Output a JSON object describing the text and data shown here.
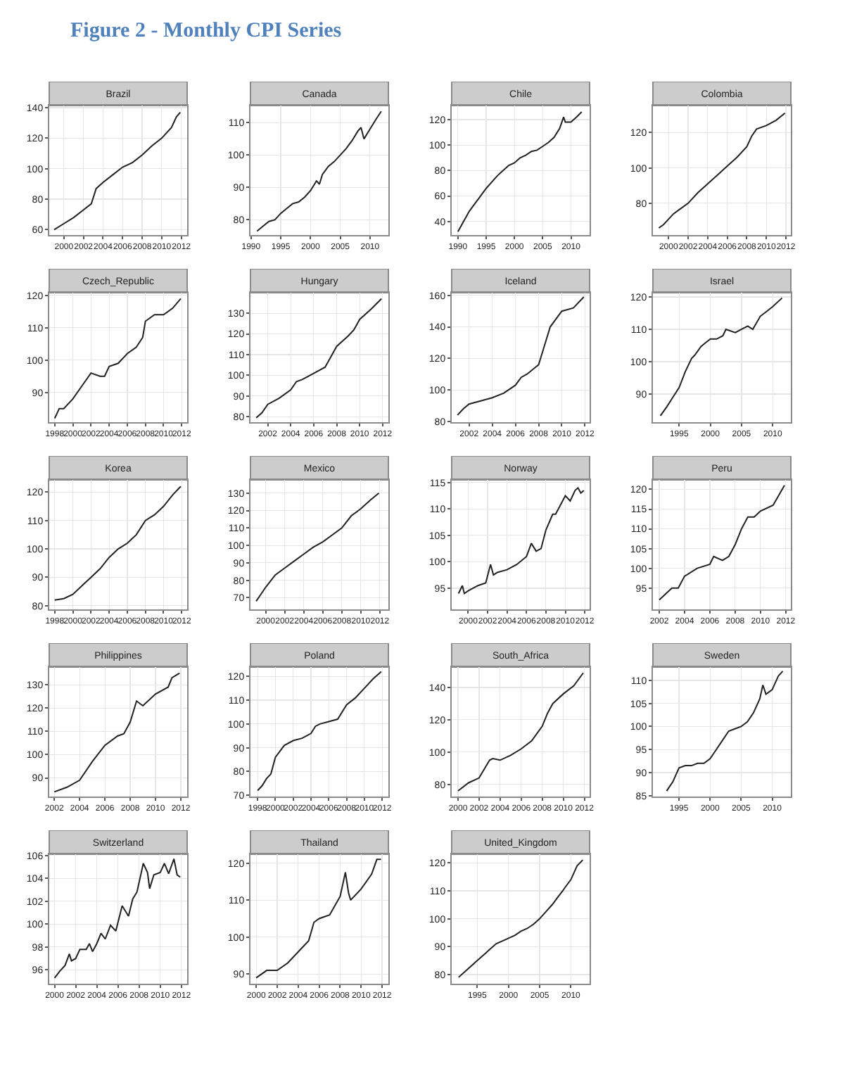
{
  "chart_data": [
    {
      "type": "other",
      "title": "Figure 2 - Monthly CPI Series"
    },
    {
      "type": "line",
      "title": "Brazil",
      "color": "#222222",
      "grid": true,
      "xlim": [
        1998.5,
        2012.6
      ],
      "xticks": [
        2000,
        2002,
        2004,
        2006,
        2008,
        2010,
        2012
      ],
      "ylim": [
        56.5,
        141.4
      ],
      "yticks": [
        60,
        80,
        100,
        120,
        140
      ],
      "x": [
        1999.0,
        2000,
        2001,
        2002,
        2002.8,
        2003.3,
        2004,
        2005,
        2006,
        2007,
        2008,
        2009,
        2010,
        2011,
        2011.5,
        2011.9
      ],
      "values": [
        60,
        64,
        68,
        73,
        77,
        87,
        91,
        96,
        101,
        104,
        109,
        115,
        120,
        127,
        134,
        137
      ]
    },
    {
      "type": "line",
      "title": "Canada",
      "color": "#222222",
      "grid": true,
      "xlim": [
        1989.9,
        2013.1
      ],
      "xticks": [
        1990,
        1995,
        2000,
        2005,
        2010
      ],
      "ylim": [
        75.3,
        115.3
      ],
      "yticks": [
        80,
        90,
        100,
        110
      ],
      "x": [
        1991,
        1992,
        1993,
        1994,
        1995,
        1996,
        1997,
        1998,
        1999,
        2000,
        2001,
        2001.5,
        2002,
        2003,
        2004,
        2005,
        2006,
        2007,
        2008,
        2008.5,
        2009,
        2010,
        2011,
        2011.9
      ],
      "values": [
        76.5,
        78,
        79.5,
        80,
        82,
        83.5,
        85,
        85.5,
        87,
        89,
        92,
        91,
        94,
        96.5,
        98,
        100,
        102,
        104.5,
        107.5,
        108.5,
        105,
        108,
        111,
        113.5
      ]
    },
    {
      "type": "line",
      "title": "Chile",
      "color": "#222222",
      "grid": true,
      "xlim": [
        1988.9,
        2013.3
      ],
      "xticks": [
        1990,
        1995,
        2000,
        2005,
        2010
      ],
      "ylim": [
        29.4,
        131
      ],
      "yticks": [
        40,
        60,
        80,
        100,
        120
      ],
      "x": [
        1990,
        1991,
        1992,
        1993,
        1994,
        1995,
        1996,
        1997,
        1998,
        1999,
        2000,
        2001,
        2002,
        2003,
        2004,
        2005,
        2006,
        2007,
        2008,
        2008.7,
        2009,
        2010,
        2011,
        2011.9
      ],
      "values": [
        32,
        40,
        48,
        54,
        60,
        66,
        71,
        76,
        80,
        84,
        86,
        90,
        92,
        95,
        96,
        99,
        102,
        106,
        113,
        122,
        118,
        118,
        122,
        126
      ]
    },
    {
      "type": "line",
      "title": "Colombia",
      "color": "#222222",
      "grid": true,
      "xlim": [
        1998.4,
        2012.5
      ],
      "xticks": [
        2000,
        2002,
        2004,
        2006,
        2008,
        2010,
        2012
      ],
      "ylim": [
        62,
        135.3
      ],
      "yticks": [
        80,
        100,
        120
      ],
      "x": [
        1999,
        1999.5,
        2000,
        2000.5,
        2001,
        2002,
        2003,
        2004,
        2005,
        2006,
        2007,
        2008,
        2008.5,
        2009,
        2010,
        2011,
        2011.9
      ],
      "values": [
        66,
        68,
        71,
        74,
        76,
        80,
        86,
        91,
        96,
        101,
        106,
        112,
        118,
        122,
        124,
        127,
        131
      ]
    },
    {
      "type": "line",
      "title": "Czech_Republic",
      "color": "#222222",
      "grid": true,
      "xlim": [
        1997.4,
        2012.6
      ],
      "xticks": [
        1998,
        2000,
        2002,
        2004,
        2006,
        2008,
        2010,
        2012
      ],
      "ylim": [
        80.8,
        120.8
      ],
      "yticks": [
        90,
        100,
        110,
        120
      ],
      "x": [
        1998,
        1998.5,
        1999,
        2000,
        2001,
        2002,
        2003,
        2003.5,
        2004,
        2005,
        2006,
        2007,
        2007.7,
        2008,
        2009,
        2010,
        2011,
        2011.9
      ],
      "values": [
        82,
        85,
        85,
        88,
        92,
        96,
        95,
        95,
        98,
        99,
        102,
        104,
        107,
        112,
        114,
        114,
        116,
        119
      ]
    },
    {
      "type": "line",
      "title": "Hungary",
      "color": "#222222",
      "grid": true,
      "xlim": [
        2000.5,
        2012.5
      ],
      "xticks": [
        2002,
        2004,
        2006,
        2008,
        2010,
        2012
      ],
      "ylim": [
        77.4,
        139.9
      ],
      "yticks": [
        80,
        90,
        100,
        110,
        120,
        130
      ],
      "x": [
        2001,
        2001.5,
        2002,
        2003,
        2004,
        2004.5,
        2005,
        2006,
        2007,
        2008,
        2009,
        2009.5,
        2010,
        2011,
        2011.9
      ],
      "values": [
        79.5,
        82,
        86,
        89,
        93,
        97,
        98,
        101,
        104,
        114,
        119,
        122,
        127,
        132,
        137
      ]
    },
    {
      "type": "line",
      "title": "Iceland",
      "color": "#222222",
      "grid": true,
      "xlim": [
        2000.5,
        2012.4
      ],
      "xticks": [
        2002,
        2004,
        2006,
        2008,
        2010,
        2012
      ],
      "ylim": [
        79.5,
        161.7
      ],
      "yticks": [
        80,
        100,
        120,
        140,
        160
      ],
      "x": [
        2001,
        2001.5,
        2002,
        2003,
        2004,
        2005,
        2006,
        2006.5,
        2007,
        2008,
        2008.5,
        2009,
        2010,
        2011,
        2011.9
      ],
      "values": [
        84,
        88,
        91,
        93,
        95,
        98,
        103,
        108,
        110,
        116,
        128,
        140,
        150,
        152,
        159
      ]
    },
    {
      "type": "line",
      "title": "Israel",
      "color": "#222222",
      "grid": true,
      "xlim": [
        1990.8,
        2012.9
      ],
      "xticks": [
        1995,
        2000,
        2005,
        2010
      ],
      "ylim": [
        81.3,
        121.3
      ],
      "yticks": [
        90,
        100,
        110,
        120
      ],
      "x": [
        1992,
        1993,
        1994,
        1995,
        1996,
        1997,
        1997.5,
        1998.5,
        1999,
        2000,
        2001,
        2002,
        2002.5,
        2004,
        2005,
        2006,
        2006.8,
        2008,
        2009,
        2010,
        2011.5
      ],
      "values": [
        83.3,
        86,
        89,
        92,
        97,
        101,
        102,
        104.7,
        105.5,
        107,
        107,
        108,
        110,
        109,
        110,
        111,
        110,
        114,
        115.5,
        117,
        119.7
      ]
    },
    {
      "type": "line",
      "title": "Korea",
      "color": "#222222",
      "grid": true,
      "xlim": [
        1997.4,
        2012.6
      ],
      "xticks": [
        1998,
        2000,
        2002,
        2004,
        2006,
        2008,
        2010,
        2012
      ],
      "ylim": [
        78.7,
        124.3
      ],
      "yticks": [
        80,
        90,
        100,
        110,
        120
      ],
      "x": [
        1998,
        1999,
        2000,
        2001,
        2002,
        2003,
        2004,
        2005,
        2006,
        2007,
        2008,
        2009,
        2010,
        2011,
        2011.9
      ],
      "values": [
        82,
        82.5,
        84,
        87,
        90,
        93,
        97,
        100,
        102,
        105,
        110,
        112,
        115,
        119,
        122
      ]
    },
    {
      "type": "line",
      "title": "Mexico",
      "color": "#222222",
      "grid": true,
      "xlim": [
        1998.4,
        2012.9
      ],
      "xticks": [
        2000,
        2002,
        2004,
        2006,
        2008,
        2010,
        2012
      ],
      "ylim": [
        63.3,
        137.6
      ],
      "yticks": [
        70,
        80,
        90,
        100,
        110,
        120,
        130
      ],
      "x": [
        1999,
        1999.5,
        2000,
        2001,
        2002,
        2003,
        2004,
        2005,
        2006,
        2007,
        2008,
        2009,
        2010,
        2011,
        2011.9
      ],
      "values": [
        68,
        72,
        76,
        83,
        87,
        91,
        95,
        99,
        102,
        106,
        110,
        117,
        121,
        126,
        130
      ]
    },
    {
      "type": "line",
      "title": "Norway",
      "color": "#222222",
      "grid": true,
      "xlim": [
        1998.3,
        2012.5
      ],
      "xticks": [
        2000,
        2002,
        2004,
        2006,
        2008,
        2010,
        2012
      ],
      "ylim": [
        91,
        115.5
      ],
      "yticks": [
        95,
        100,
        105,
        110,
        115
      ],
      "x": [
        1999,
        1999.4,
        1999.6,
        2000,
        2001,
        2001.8,
        2002.3,
        2002.6,
        2003,
        2004,
        2005,
        2006,
        2006.5,
        2007,
        2007.5,
        2008,
        2008.7,
        2009,
        2010,
        2010.5,
        2011,
        2011.3,
        2011.6,
        2011.9
      ],
      "values": [
        94,
        95.5,
        94,
        94.5,
        95.5,
        96,
        99.5,
        97.5,
        98,
        98.5,
        99.5,
        101,
        103.5,
        102,
        102.5,
        106,
        109,
        109,
        112.5,
        111.5,
        113.5,
        114,
        113,
        113.5
      ]
    },
    {
      "type": "line",
      "title": "Peru",
      "color": "#222222",
      "grid": true,
      "xlim": [
        2001.5,
        2012.4
      ],
      "xticks": [
        2002,
        2004,
        2006,
        2008,
        2010,
        2012
      ],
      "ylim": [
        89.6,
        122.4
      ],
      "yticks": [
        95,
        100,
        105,
        110,
        115,
        120
      ],
      "x": [
        2002,
        2003,
        2003.5,
        2004,
        2005,
        2006,
        2006.3,
        2007,
        2007.5,
        2008,
        2008.5,
        2009,
        2009.5,
        2010,
        2011,
        2011.9
      ],
      "values": [
        92,
        95,
        95,
        98,
        100,
        101,
        103,
        102,
        103,
        106,
        110,
        113,
        113,
        114.5,
        116,
        121
      ]
    },
    {
      "type": "line",
      "title": "Philippines",
      "color": "#222222",
      "grid": true,
      "xlim": [
        2001.6,
        2012.5
      ],
      "xticks": [
        2002,
        2004,
        2006,
        2008,
        2010,
        2012
      ],
      "ylim": [
        82,
        137.6
      ],
      "yticks": [
        90,
        100,
        110,
        120,
        130
      ],
      "x": [
        2002,
        2003,
        2004,
        2005,
        2006,
        2007,
        2007.5,
        2008,
        2008.5,
        2009,
        2010,
        2011,
        2011.3,
        2011.9
      ],
      "values": [
        84,
        86,
        89,
        97,
        104,
        108,
        109,
        114,
        123,
        121,
        126,
        129,
        133,
        135
      ]
    },
    {
      "type": "line",
      "title": "Poland",
      "color": "#222222",
      "grid": true,
      "xlim": [
        1997.2,
        2012.7
      ],
      "xticks": [
        1998,
        2000,
        2002,
        2004,
        2006,
        2008,
        2010,
        2012
      ],
      "ylim": [
        69.5,
        123.9
      ],
      "yticks": [
        70,
        80,
        90,
        100,
        110,
        120
      ],
      "x": [
        1998,
        1998.5,
        1999,
        1999.5,
        2000,
        2001,
        2002,
        2003,
        2004,
        2004.5,
        2005,
        2006,
        2007,
        2008,
        2009,
        2010,
        2011,
        2011.9
      ],
      "values": [
        72,
        74,
        77,
        79,
        86,
        91,
        93,
        94,
        96,
        99,
        100,
        101,
        102,
        108,
        111,
        115,
        119,
        122
      ]
    },
    {
      "type": "line",
      "title": "South_Africa",
      "color": "#222222",
      "grid": true,
      "xlim": [
        1999.4,
        2012.5
      ],
      "xticks": [
        2000,
        2002,
        2004,
        2006,
        2008,
        2010,
        2012
      ],
      "ylim": [
        72.5,
        152.6
      ],
      "yticks": [
        80,
        100,
        120,
        140
      ],
      "x": [
        2000,
        2001,
        2002,
        2003,
        2003.3,
        2004,
        2005,
        2006,
        2007,
        2008,
        2008.5,
        2009,
        2010,
        2011,
        2011.9
      ],
      "values": [
        76,
        81,
        84,
        95,
        96,
        95,
        98,
        102,
        107,
        116,
        124,
        130,
        136,
        141,
        149
      ]
    },
    {
      "type": "line",
      "title": "Sweden",
      "color": "#222222",
      "grid": true,
      "xlim": [
        1990.8,
        2013
      ],
      "xticks": [
        1995,
        2000,
        2005,
        2010
      ],
      "ylim": [
        84.8,
        112.9
      ],
      "yticks": [
        85,
        90,
        95,
        100,
        105,
        110
      ],
      "x": [
        1993,
        1994,
        1995,
        1996,
        1997,
        1998,
        1999,
        2000,
        2001,
        2002,
        2003,
        2004,
        2005,
        2006,
        2007,
        2008,
        2008.5,
        2009,
        2010,
        2011,
        2011.7
      ],
      "values": [
        86,
        88,
        91,
        91.5,
        91.5,
        92,
        92,
        93,
        95,
        97,
        99,
        99.5,
        100,
        101,
        103,
        106,
        109,
        107,
        108,
        111,
        112
      ]
    },
    {
      "type": "line",
      "title": "Switzerland",
      "color": "#222222",
      "grid": true,
      "xlim": [
        1999.5,
        2012.55
      ],
      "xticks": [
        2000,
        2002,
        2004,
        2006,
        2008,
        2010,
        2012
      ],
      "ylim": [
        94.8,
        106.1
      ],
      "yticks": [
        96,
        98,
        100,
        102,
        104,
        106
      ],
      "x": [
        2000,
        2000.5,
        2001,
        2001.4,
        2001.6,
        2002,
        2002.4,
        2003,
        2003.3,
        2003.6,
        2004,
        2004.4,
        2004.8,
        2005.3,
        2005.8,
        2006.4,
        2007,
        2007.4,
        2007.8,
        2008.4,
        2008.8,
        2009,
        2009.4,
        2010,
        2010.4,
        2010.8,
        2011.3,
        2011.6,
        2011.9
      ],
      "values": [
        95.3,
        95.9,
        96.4,
        97.4,
        96.8,
        97,
        97.8,
        97.8,
        98.3,
        97.6,
        98.3,
        99.2,
        98.7,
        99.9,
        99.4,
        101.6,
        100.7,
        102.2,
        102.8,
        105.3,
        104.5,
        103.1,
        104.3,
        104.5,
        105.3,
        104.4,
        105.7,
        104.3,
        104.1
      ]
    },
    {
      "type": "line",
      "title": "Thailand",
      "color": "#222222",
      "grid": true,
      "xlim": [
        1999.45,
        2012.6
      ],
      "xticks": [
        2000,
        2002,
        2004,
        2006,
        2008,
        2010,
        2012
      ],
      "ylim": [
        87.4,
        122.4
      ],
      "yticks": [
        90,
        100,
        110,
        120
      ],
      "x": [
        2000,
        2001,
        2002,
        2003,
        2004,
        2005,
        2005.5,
        2006,
        2007,
        2008,
        2008.5,
        2008.8,
        2009,
        2010,
        2011,
        2011.5,
        2011.9
      ],
      "values": [
        89,
        91,
        91,
        93,
        96,
        99,
        104,
        105,
        106,
        111,
        117.5,
        112,
        110,
        113,
        117,
        121,
        121
      ]
    },
    {
      "type": "line",
      "title": "United_Kingdom",
      "color": "#222222",
      "grid": true,
      "xlim": [
        1990.9,
        2013
      ],
      "xticks": [
        1995,
        2000,
        2005,
        2010
      ],
      "ylim": [
        76.7,
        123.1
      ],
      "yticks": [
        80,
        90,
        100,
        110,
        120
      ],
      "x": [
        1992,
        1993,
        1994,
        1995,
        1996,
        1997,
        1998,
        1999,
        2000,
        2001,
        2002,
        2003,
        2004,
        2005,
        2006,
        2007,
        2008,
        2008.7,
        2009,
        2010,
        2011,
        2011.9
      ],
      "values": [
        79,
        81,
        83,
        85,
        87,
        89,
        91,
        92,
        93,
        94,
        95.5,
        96.5,
        98,
        100,
        102.5,
        105,
        108,
        110,
        111,
        114,
        119,
        121
      ]
    }
  ]
}
